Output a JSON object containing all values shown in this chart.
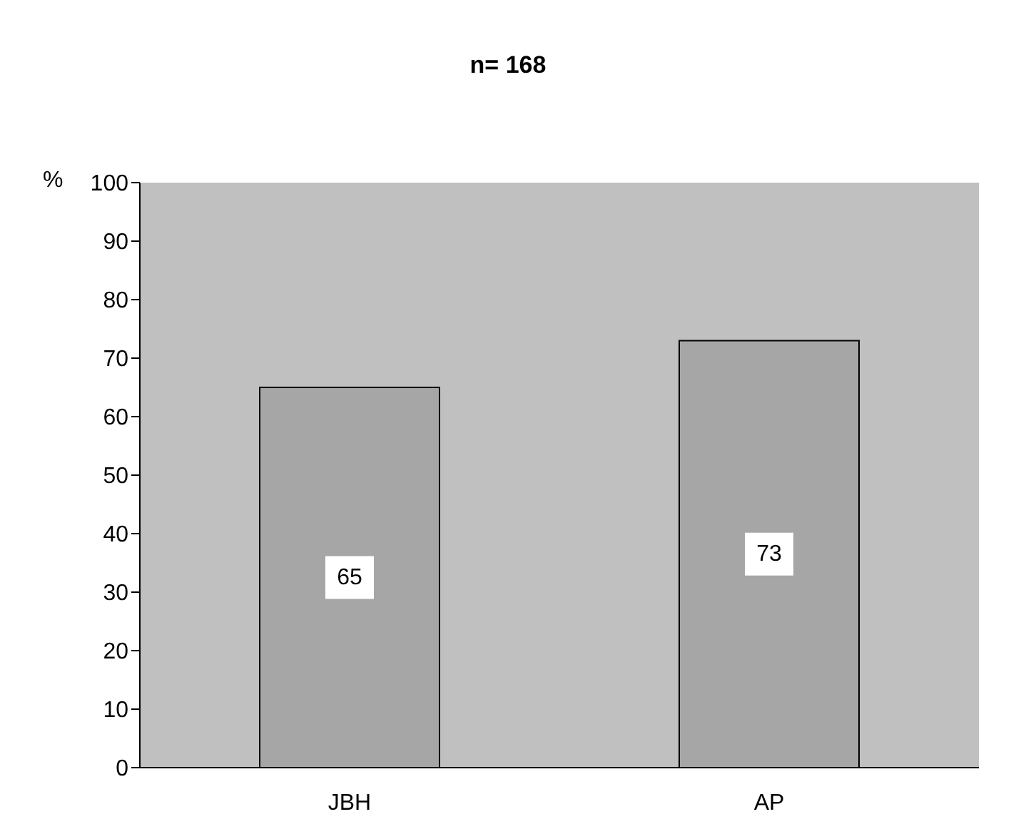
{
  "chart_data": {
    "type": "bar",
    "title": "n= 168",
    "ylabel": "%",
    "categories": [
      "JBH",
      "AP"
    ],
    "values": [
      65,
      73
    ],
    "color": "#a6a6a6",
    "ylim": [
      0,
      100
    ],
    "yticks": [
      0,
      10,
      20,
      30,
      40,
      50,
      60,
      70,
      80,
      90,
      100
    ],
    "data_labels": true,
    "grid": false
  }
}
